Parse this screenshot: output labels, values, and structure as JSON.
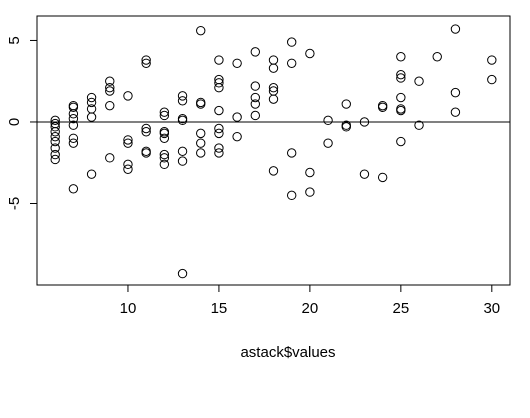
{
  "chart_data": {
    "type": "scatter",
    "title": "",
    "xlabel": "astack$values",
    "ylabel": "",
    "xlim": [
      5,
      31
    ],
    "ylim": [
      -10,
      6.5
    ],
    "xticks": [
      10,
      15,
      20,
      25,
      30
    ],
    "yticks": [
      -5,
      0,
      5
    ],
    "xtick_labels": [
      "10",
      "15",
      "20",
      "25",
      "30"
    ],
    "ytick_labels": [
      "-5",
      "0",
      "5"
    ],
    "reference_line_y": 0,
    "grid": false,
    "legend": "none",
    "points": [
      [
        6,
        0.1
      ],
      [
        6,
        -0.1
      ],
      [
        6,
        -0.3
      ],
      [
        6,
        -0.6
      ],
      [
        6,
        -0.9
      ],
      [
        6,
        -1.2
      ],
      [
        6,
        -1.6
      ],
      [
        6,
        -2.0
      ],
      [
        6,
        -2.3
      ],
      [
        7,
        1.0
      ],
      [
        7,
        0.9
      ],
      [
        7,
        0.5
      ],
      [
        7,
        0.2
      ],
      [
        7,
        -0.2
      ],
      [
        7,
        -1.0
      ],
      [
        7,
        -1.3
      ],
      [
        7,
        -4.1
      ],
      [
        8,
        1.5
      ],
      [
        8,
        1.2
      ],
      [
        8,
        0.8
      ],
      [
        8,
        0.3
      ],
      [
        8,
        -3.2
      ],
      [
        9,
        2.5
      ],
      [
        9,
        2.1
      ],
      [
        9,
        1.9
      ],
      [
        9,
        1.0
      ],
      [
        9,
        -2.2
      ],
      [
        10,
        1.6
      ],
      [
        10,
        -1.1
      ],
      [
        10,
        -1.3
      ],
      [
        10,
        -2.6
      ],
      [
        10,
        -2.9
      ],
      [
        11,
        3.8
      ],
      [
        11,
        3.6
      ],
      [
        11,
        -0.4
      ],
      [
        11,
        -0.6
      ],
      [
        11,
        -1.8
      ],
      [
        11,
        -1.9
      ],
      [
        12,
        0.6
      ],
      [
        12,
        0.4
      ],
      [
        12,
        -0.6
      ],
      [
        12,
        -0.7
      ],
      [
        12,
        -1.0
      ],
      [
        12,
        -2.0
      ],
      [
        12,
        -2.2
      ],
      [
        12,
        -2.6
      ],
      [
        13,
        1.6
      ],
      [
        13,
        1.3
      ],
      [
        13,
        0.2
      ],
      [
        13,
        0.1
      ],
      [
        13,
        -1.8
      ],
      [
        13,
        -2.4
      ],
      [
        13,
        -9.3
      ],
      [
        14,
        5.6
      ],
      [
        14,
        1.2
      ],
      [
        14,
        1.1
      ],
      [
        14,
        -0.7
      ],
      [
        14,
        -1.3
      ],
      [
        14,
        -1.9
      ],
      [
        15,
        3.8
      ],
      [
        15,
        2.6
      ],
      [
        15,
        2.4
      ],
      [
        15,
        2.1
      ],
      [
        15,
        0.7
      ],
      [
        15,
        -0.4
      ],
      [
        15,
        -0.7
      ],
      [
        15,
        -1.6
      ],
      [
        15,
        -1.9
      ],
      [
        16,
        3.6
      ],
      [
        16,
        0.3
      ],
      [
        16,
        -0.9
      ],
      [
        17,
        4.3
      ],
      [
        17,
        2.2
      ],
      [
        17,
        1.5
      ],
      [
        17,
        1.1
      ],
      [
        17,
        0.4
      ],
      [
        18,
        3.8
      ],
      [
        18,
        3.3
      ],
      [
        18,
        2.1
      ],
      [
        18,
        1.9
      ],
      [
        18,
        1.4
      ],
      [
        18,
        -3.0
      ],
      [
        19,
        4.9
      ],
      [
        19,
        3.6
      ],
      [
        19,
        -1.9
      ],
      [
        19,
        -4.5
      ],
      [
        20,
        4.2
      ],
      [
        20,
        -3.1
      ],
      [
        20,
        -4.3
      ],
      [
        21,
        0.1
      ],
      [
        21,
        -1.3
      ],
      [
        22,
        1.1
      ],
      [
        22,
        -0.2
      ],
      [
        22,
        -0.3
      ],
      [
        23,
        0.0
      ],
      [
        23,
        -3.2
      ],
      [
        24,
        1.0
      ],
      [
        24,
        0.9
      ],
      [
        24,
        -3.4
      ],
      [
        25,
        4.0
      ],
      [
        25,
        2.9
      ],
      [
        25,
        2.7
      ],
      [
        25,
        1.5
      ],
      [
        25,
        0.8
      ],
      [
        25,
        0.7
      ],
      [
        25,
        -1.2
      ],
      [
        26,
        2.5
      ],
      [
        26,
        -0.2
      ],
      [
        27,
        4.0
      ],
      [
        28,
        5.7
      ],
      [
        28,
        1.8
      ],
      [
        28,
        0.6
      ],
      [
        30,
        3.8
      ],
      [
        30,
        2.6
      ]
    ]
  }
}
